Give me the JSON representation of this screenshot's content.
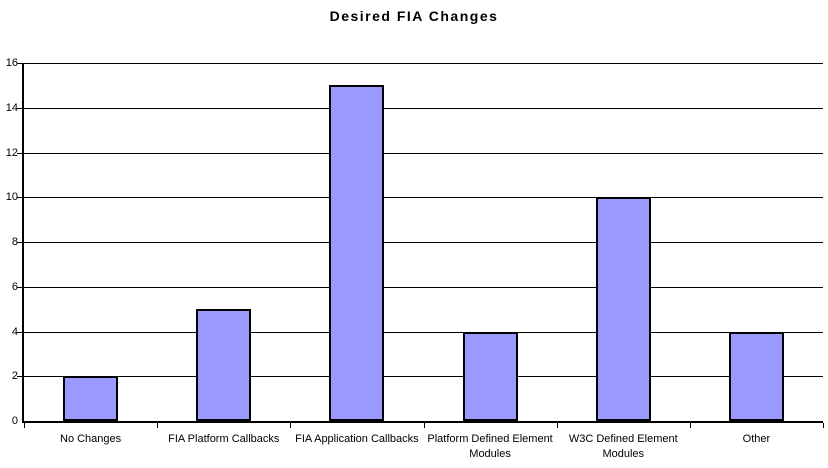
{
  "chart_data": {
    "type": "bar",
    "title": "Desired FIA Changes",
    "categories": [
      "No Changes",
      "FIA Platform Callbacks",
      "FIA Application Callbacks",
      "Platform Defined Element Modules",
      "W3C Defined Element Modules",
      "Other"
    ],
    "label_lines": [
      [
        "No Changes"
      ],
      [
        "FIA Platform Callbacks"
      ],
      [
        "FIA Application Callbacks"
      ],
      [
        "Platform Defined Element",
        "Modules"
      ],
      [
        "W3C Defined Element",
        "Modules"
      ],
      [
        "Other"
      ]
    ],
    "values": [
      2,
      5,
      15,
      4,
      10,
      4
    ],
    "xlabel": "",
    "ylabel": "",
    "ylim": [
      0,
      16
    ],
    "ytick_step": 2,
    "grid": true,
    "legend_position": "none",
    "colors": {
      "bar_fill": "#9999FF",
      "bar_border": "#000000",
      "gridline": "#000000",
      "axis": "#000000",
      "text": "#000000",
      "background": "#FFFFFF"
    }
  }
}
